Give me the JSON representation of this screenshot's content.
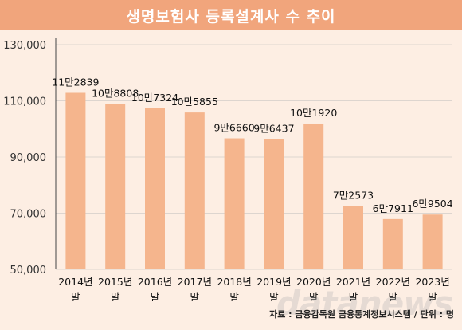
{
  "title": "생명보험사 등록설계사 수 추이",
  "source": "자료 : 금융감독원 금융통계정보시스템 / 단위 : 명",
  "watermark": "datanews",
  "colors": {
    "bar": "#f5b58d",
    "title_bg": "#f1a57c",
    "background": "#fdeee3",
    "grid": "#ddd5cf"
  },
  "chart_data": {
    "type": "bar",
    "title": "생명보험사 등록설계사 수 추이",
    "categories": [
      "2014년 말",
      "2015년 말",
      "2016년 말",
      "2017년 말",
      "2018년 말",
      "2019년 말",
      "2020년 말",
      "2021년 말",
      "2022년 말",
      "2023년 말"
    ],
    "category_lines": [
      [
        "2014년",
        "말"
      ],
      [
        "2015년",
        "말"
      ],
      [
        "2016년",
        "말"
      ],
      [
        "2017년",
        "말"
      ],
      [
        "2018년",
        "말"
      ],
      [
        "2019년",
        "말"
      ],
      [
        "2020년",
        "말"
      ],
      [
        "2021년",
        "말"
      ],
      [
        "2022년",
        "말"
      ],
      [
        "2023년",
        "말"
      ]
    ],
    "values": [
      112839,
      108808,
      107324,
      105855,
      96660,
      96437,
      101920,
      72573,
      67911,
      69504
    ],
    "data_labels": [
      "11만2839",
      "10만8808",
      "10만7324",
      "10만5855",
      "9만6660",
      "9만6437",
      "10만1920",
      "7만2573",
      "6만7911",
      "6만9504"
    ],
    "yticks": [
      50000,
      70000,
      90000,
      110000,
      130000
    ],
    "ytick_labels": [
      "50,000",
      "70,000",
      "90,000",
      "110,000",
      "130,000"
    ],
    "ylim": [
      50000,
      130000
    ],
    "xlabel": "",
    "ylabel": "",
    "grid": true,
    "legend": "none"
  }
}
